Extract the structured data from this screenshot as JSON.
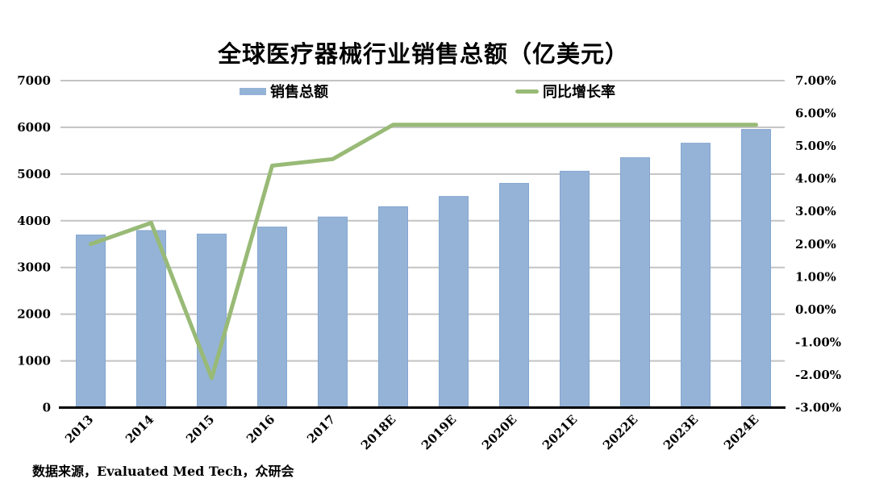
{
  "page": {
    "title": "全球医疗器械行业销售总额（亿美元）",
    "source_note": "数据来源，Evaluated Med Tech，众研会"
  },
  "legend": {
    "sales_label": "销售总额",
    "growth_label": "同比增长率"
  },
  "colors": {
    "bar_fill": "#95B3D7",
    "bar_border": "#84A7D0",
    "line_green": "#98BA76",
    "gridline": "#C3C3C3",
    "axis_line": "#000000",
    "text": "#000000",
    "background": "#FFFFFF"
  },
  "chart_data": {
    "type": "bar",
    "combo": "bar + line (dual axis)",
    "title": "全球医疗器械行业销售总额（亿美元）",
    "categories": [
      "2013",
      "2014",
      "2015",
      "2016",
      "2017",
      "2018E",
      "2019E",
      "2020E",
      "2021E",
      "2022E",
      "2023E",
      "2024E"
    ],
    "series": [
      {
        "name": "销售总额",
        "type": "bar",
        "axis": "left",
        "color": "#95B3D7",
        "values": [
          3695,
          3790,
          3715,
          3865,
          4080,
          4300,
          4520,
          4800,
          5060,
          5350,
          5660,
          5955
        ]
      },
      {
        "name": "同比增长率",
        "type": "line",
        "axis": "right",
        "color": "#98BA76",
        "values": [
          2.0,
          2.65,
          -2.1,
          4.4,
          4.6,
          5.65,
          5.65,
          5.65,
          5.65,
          5.65,
          5.65,
          5.65
        ],
        "unit": "%"
      }
    ],
    "left_axis": {
      "min": 0,
      "max": 7000,
      "step": 1000,
      "tick_labels": [
        "0",
        "1000",
        "2000",
        "3000",
        "4000",
        "5000",
        "6000",
        "7000"
      ]
    },
    "right_axis": {
      "min": -3,
      "max": 7,
      "step": 1,
      "format": "0.00%",
      "tick_labels": [
        "7.00%",
        "6.00%",
        "5.00%",
        "4.00%",
        "3.00%",
        "2.00%",
        "1.00%",
        "0.00%",
        "-1.00%",
        "-2.00%",
        "-3.00%"
      ]
    },
    "grid": true,
    "legend_position": "top",
    "xlabel": "",
    "ylabel_left": "亿美元",
    "ylabel_right": "同比增长率"
  }
}
